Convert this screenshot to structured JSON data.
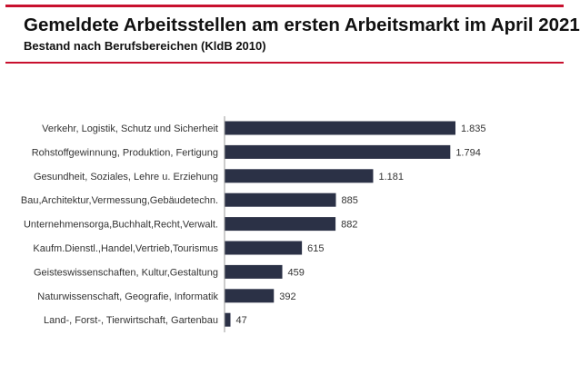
{
  "chart_data": {
    "type": "bar",
    "orientation": "horizontal",
    "title": "Gemeldete Arbeitsstellen am ersten Arbeitsmarkt im April 2021",
    "subtitle": "Bestand nach Berufsbereichen (KldB 2010)",
    "categories": [
      "Verkehr, Logistik, Schutz und Sicherheit",
      "Rohstoffgewinnung, Produktion, Fertigung",
      "Gesundheit, Soziales, Lehre u. Erziehung",
      "Bau,Architektur,Vermessung,Gebäudetechn.",
      "Unternehmensorga,Buchhalt,Recht,Verwalt.",
      "Kaufm.Dienstl.,Handel,Vertrieb,Tourismus",
      "Geisteswissenschaften, Kultur,Gestaltung",
      "Naturwissenschaft, Geografie, Informatik",
      "Land-, Forst-, Tierwirtschaft, Gartenbau"
    ],
    "values": [
      1835,
      1794,
      1181,
      885,
      882,
      615,
      459,
      392,
      47
    ],
    "value_labels": [
      "1.835",
      "1.794",
      "1.181",
      "885",
      "882",
      "615",
      "459",
      "392",
      "47"
    ],
    "grid": false,
    "bar_color": "#2b3146",
    "accent_color": "#c8102e"
  }
}
